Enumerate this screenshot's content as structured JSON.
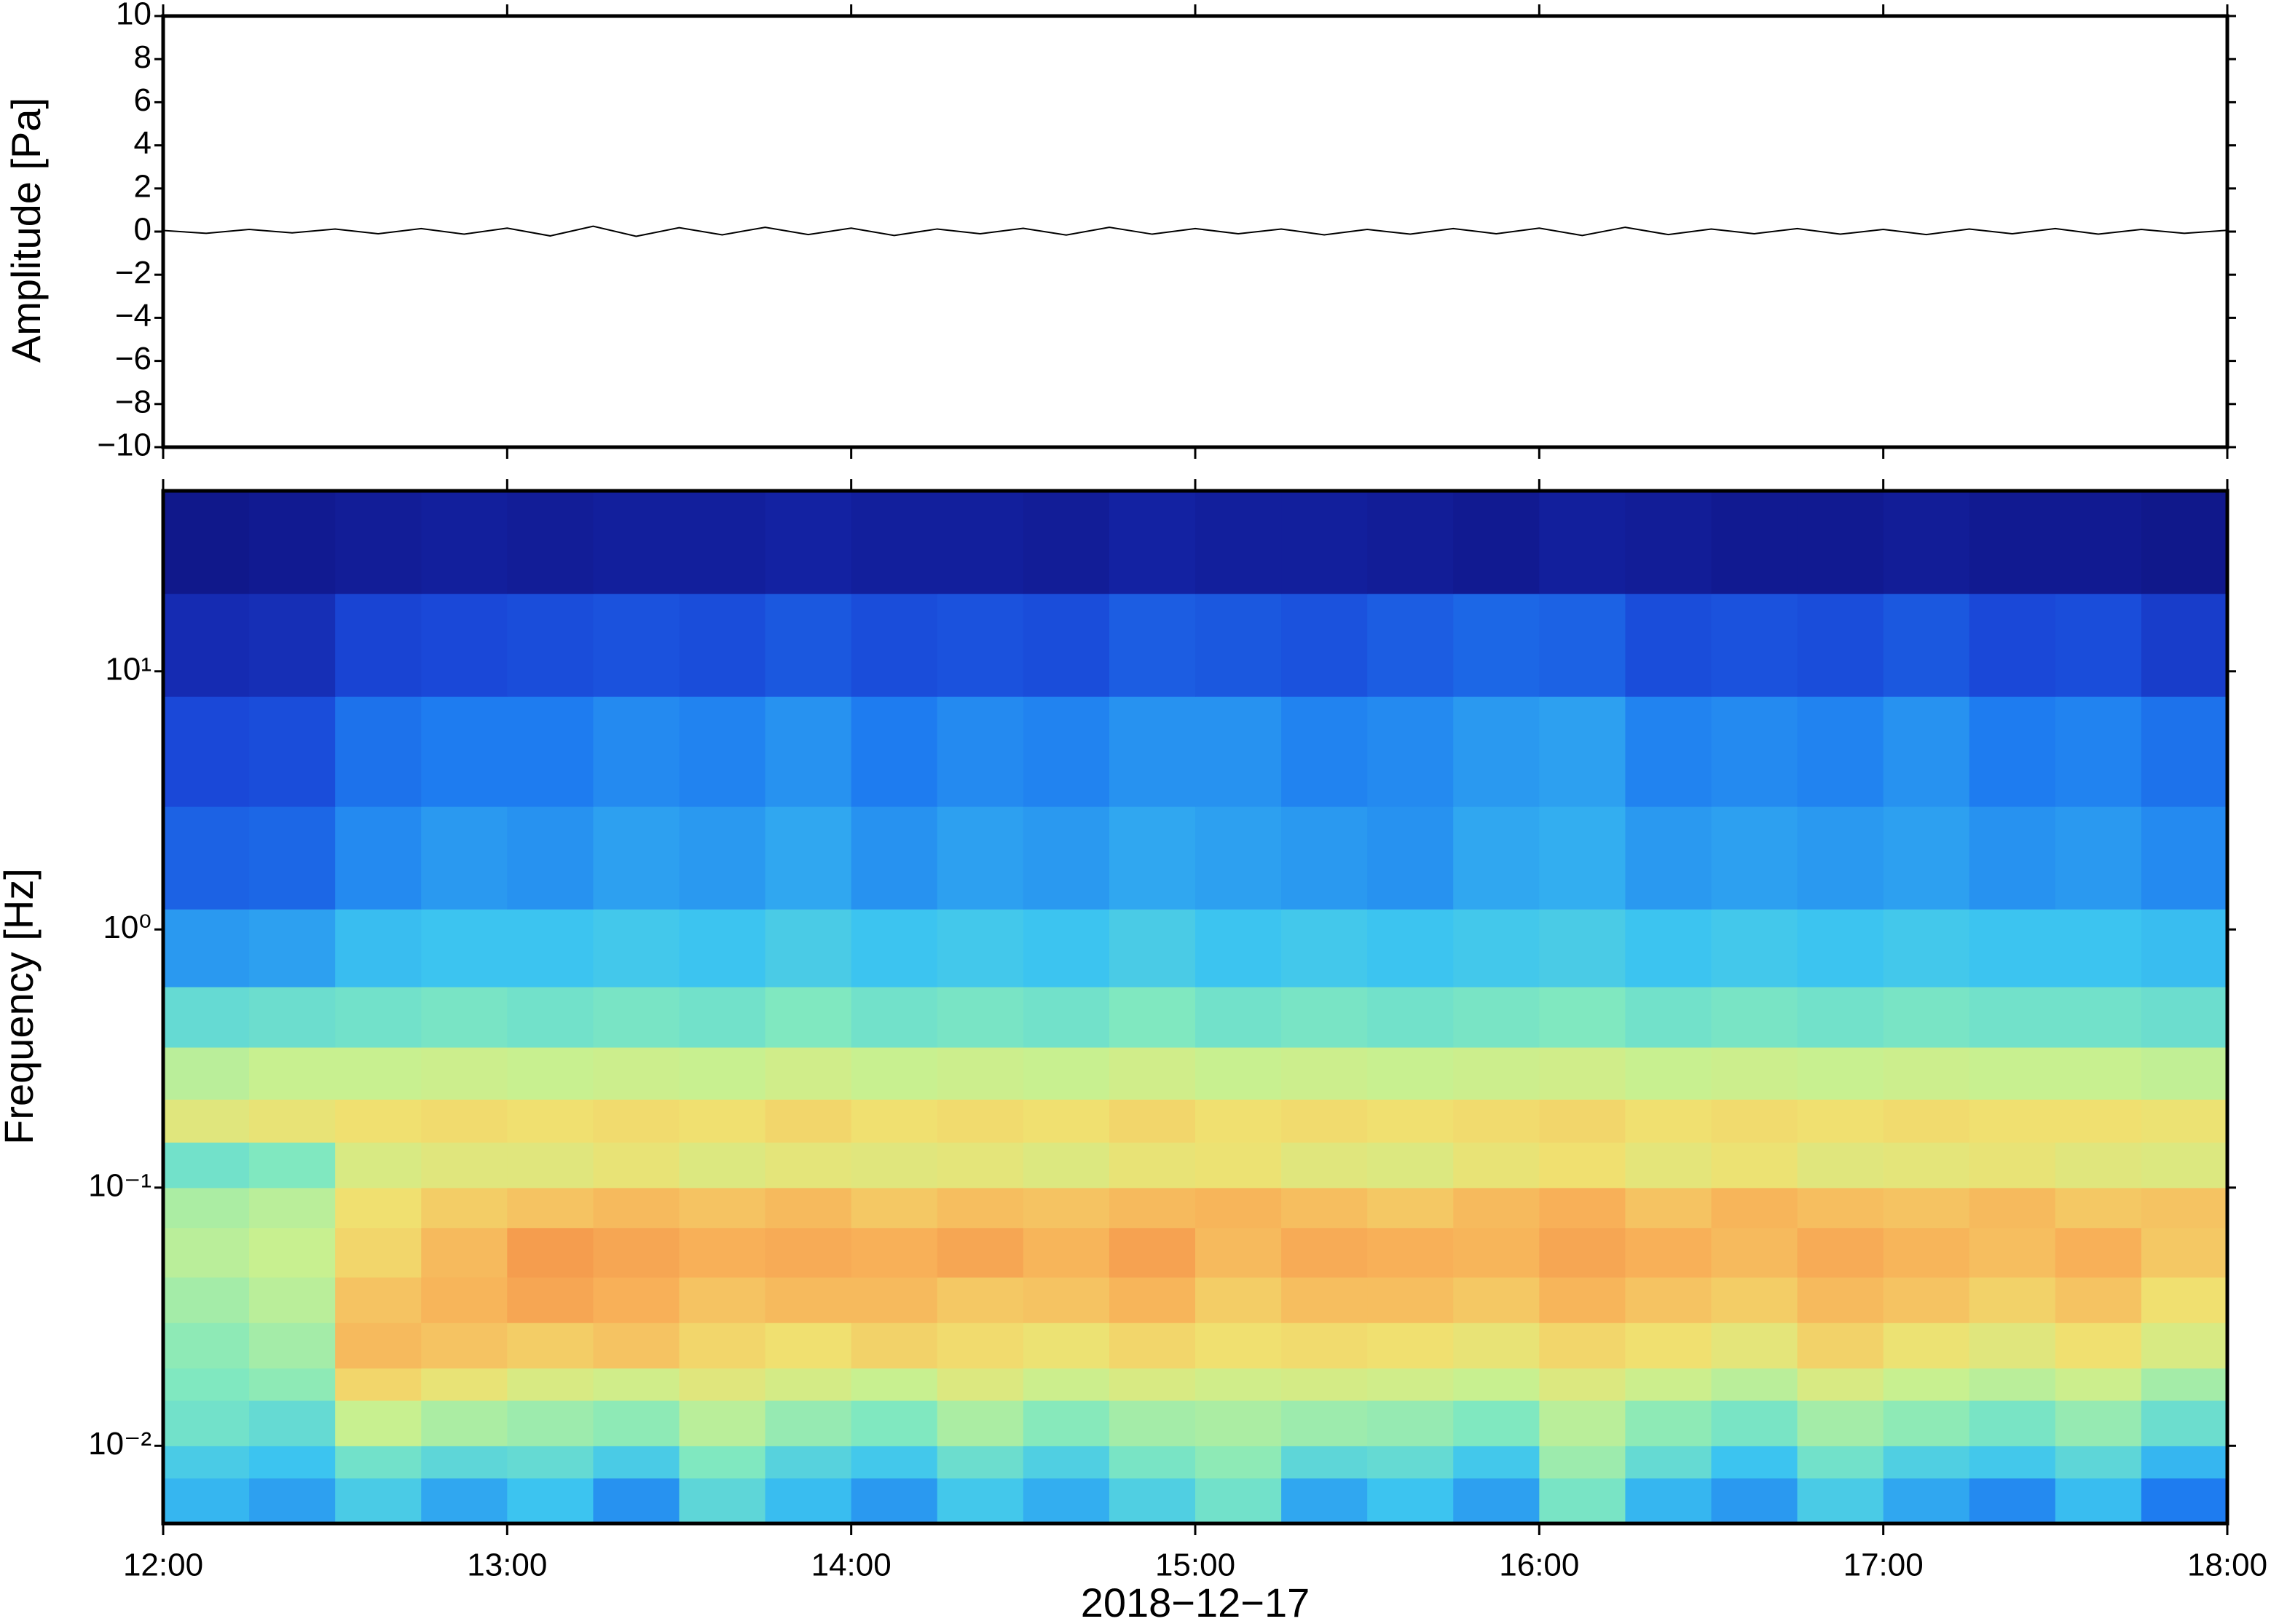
{
  "chart_data": [
    {
      "type": "line",
      "ylabel": "Amplitude [Pa]",
      "color": "#000000",
      "x": [
        12,
        12.125,
        12.25,
        12.375,
        12.5,
        12.625,
        12.75,
        12.875,
        13,
        13.125,
        13.25,
        13.375,
        13.5,
        13.625,
        13.75,
        13.875,
        14,
        14.125,
        14.25,
        14.375,
        14.5,
        14.625,
        14.75,
        14.875,
        15,
        15.125,
        15.25,
        15.375,
        15.5,
        15.625,
        15.75,
        15.875,
        16,
        16.125,
        16.25,
        16.375,
        16.5,
        16.625,
        16.75,
        16.875,
        17,
        17.125,
        17.25,
        17.375,
        17.5,
        17.625,
        17.75,
        17.875,
        18
      ],
      "values": [
        0.05,
        -0.08,
        0.1,
        -0.06,
        0.12,
        -0.1,
        0.14,
        -0.12,
        0.16,
        -0.2,
        0.25,
        -0.22,
        0.18,
        -0.15,
        0.2,
        -0.14,
        0.16,
        -0.18,
        0.12,
        -0.1,
        0.15,
        -0.16,
        0.2,
        -0.12,
        0.14,
        -0.1,
        0.12,
        -0.15,
        0.1,
        -0.12,
        0.14,
        -0.1,
        0.16,
        -0.18,
        0.2,
        -0.14,
        0.12,
        -0.1,
        0.14,
        -0.12,
        0.1,
        -0.14,
        0.12,
        -0.1,
        0.14,
        -0.12,
        0.1,
        -0.08,
        0.06
      ],
      "xlim": [
        12,
        18
      ],
      "ylim": [
        -10,
        10
      ],
      "yticks": [
        {
          "value": -10,
          "label": "−10"
        },
        {
          "value": -8,
          "label": "−8"
        },
        {
          "value": -6,
          "label": "−6"
        },
        {
          "value": -4,
          "label": "−4"
        },
        {
          "value": -2,
          "label": "−2"
        },
        0,
        2,
        4,
        6,
        8,
        10
      ]
    },
    {
      "type": "heatmap",
      "ylabel": "Frequency [Hz]",
      "xlabel": "2018−12−17",
      "log_y": true,
      "xlim": [
        12,
        18
      ],
      "ylim": [
        0.005,
        50
      ],
      "xticks": [
        {
          "value": 12,
          "label": "12:00"
        },
        {
          "value": 13,
          "label": "13:00"
        },
        {
          "value": 14,
          "label": "14:00"
        },
        {
          "value": 15,
          "label": "15:00"
        },
        {
          "value": 16,
          "label": "16:00"
        },
        {
          "value": 17,
          "label": "17:00"
        },
        {
          "value": 18,
          "label": "18:00"
        }
      ],
      "yticks": [
        {
          "value": 0.01,
          "label": "10⁻²"
        },
        {
          "value": 0.1,
          "label": "10⁻¹"
        },
        {
          "value": 1,
          "label": "10⁰"
        },
        {
          "value": 10,
          "label": "10¹"
        }
      ],
      "xbins": [
        12,
        12.25,
        12.5,
        12.75,
        13,
        13.25,
        13.5,
        13.75,
        14,
        14.25,
        14.5,
        14.75,
        15,
        15.25,
        15.5,
        15.75,
        16,
        16.25,
        16.5,
        16.75,
        17,
        17.25,
        17.5,
        17.75,
        18
      ],
      "ybins": [
        0.005,
        0.0075,
        0.01,
        0.015,
        0.02,
        0.03,
        0.045,
        0.07,
        0.1,
        0.15,
        0.22,
        0.35,
        0.6,
        1.2,
        3,
        8,
        20,
        50
      ],
      "zlim": [
        0,
        10
      ],
      "colormap": [
        "#0c0c6e",
        "#1424a8",
        "#1a48d8",
        "#1e7cf0",
        "#3cc4f0",
        "#80e8c0",
        "#c8f090",
        "#f0e070",
        "#f8b058",
        "#f08040",
        "#d83020"
      ],
      "values": [
        [
          3.8,
          3.5,
          4.2,
          3.6,
          4.0,
          3.3,
          4.5,
          3.9,
          3.4,
          4.1,
          3.7,
          4.3,
          4.8,
          3.6,
          4.0,
          3.5,
          4.9,
          3.8,
          3.4,
          4.2,
          3.6,
          3.2,
          3.9,
          3.0
        ],
        [
          4.2,
          4.0,
          4.8,
          4.5,
          4.6,
          4.2,
          5.0,
          4.4,
          4.1,
          4.7,
          4.3,
          4.9,
          5.2,
          4.5,
          4.6,
          4.1,
          5.4,
          4.6,
          4.0,
          4.8,
          4.3,
          4.1,
          4.5,
          3.8
        ],
        [
          4.8,
          4.6,
          6.0,
          5.6,
          5.4,
          5.2,
          5.8,
          5.3,
          5.0,
          5.6,
          5.1,
          5.5,
          5.6,
          5.4,
          5.3,
          5.0,
          5.8,
          5.2,
          4.9,
          5.5,
          5.2,
          4.9,
          5.3,
          4.7
        ],
        [
          5.0,
          5.2,
          7.2,
          6.8,
          6.4,
          6.2,
          6.6,
          6.3,
          6.0,
          6.5,
          6.1,
          6.4,
          6.2,
          6.3,
          6.2,
          6.0,
          6.5,
          6.1,
          5.8,
          6.4,
          6.0,
          5.8,
          6.1,
          5.5
        ],
        [
          5.2,
          5.5,
          7.8,
          7.6,
          7.4,
          7.6,
          7.2,
          7.0,
          7.3,
          7.1,
          6.9,
          7.2,
          7.0,
          7.1,
          7.0,
          6.8,
          7.2,
          7.0,
          6.7,
          7.3,
          6.9,
          6.6,
          7.0,
          6.4
        ],
        [
          5.5,
          5.8,
          7.6,
          7.9,
          8.2,
          8.0,
          7.6,
          7.8,
          7.8,
          7.5,
          7.6,
          7.9,
          7.4,
          7.7,
          7.7,
          7.5,
          7.9,
          7.6,
          7.4,
          7.8,
          7.6,
          7.3,
          7.6,
          7.0
        ],
        [
          5.8,
          6.0,
          7.2,
          7.8,
          8.4,
          8.2,
          8.0,
          8.1,
          8.0,
          8.2,
          7.9,
          8.3,
          7.8,
          8.1,
          8.0,
          7.9,
          8.2,
          8.0,
          7.8,
          8.1,
          7.9,
          7.7,
          8.0,
          7.5
        ],
        [
          5.6,
          5.8,
          7.0,
          7.4,
          7.6,
          7.8,
          7.6,
          7.8,
          7.5,
          7.7,
          7.6,
          7.8,
          7.9,
          7.7,
          7.5,
          7.8,
          8.0,
          7.6,
          7.9,
          7.7,
          7.6,
          7.8,
          7.5,
          7.6
        ],
        [
          4.8,
          5.0,
          6.4,
          6.6,
          6.6,
          6.8,
          6.5,
          6.7,
          6.6,
          6.7,
          6.5,
          6.8,
          6.9,
          6.6,
          6.5,
          6.8,
          7.0,
          6.7,
          6.9,
          6.6,
          6.7,
          6.8,
          6.6,
          6.5
        ],
        [
          6.6,
          6.8,
          7.0,
          7.1,
          7.0,
          7.1,
          7.0,
          7.2,
          7.0,
          7.1,
          7.0,
          7.2,
          7.0,
          7.1,
          7.0,
          7.1,
          7.2,
          7.0,
          7.1,
          7.0,
          7.1,
          7.0,
          7.0,
          6.9
        ],
        [
          5.8,
          6.0,
          6.0,
          6.1,
          6.0,
          6.1,
          6.0,
          6.2,
          6.0,
          6.1,
          6.0,
          6.2,
          6.0,
          6.1,
          6.0,
          6.1,
          6.2,
          6.0,
          6.1,
          6.0,
          6.1,
          6.0,
          6.0,
          5.9
        ],
        [
          4.6,
          4.7,
          4.8,
          4.9,
          4.8,
          4.9,
          4.8,
          5.0,
          4.8,
          4.9,
          4.8,
          5.0,
          4.8,
          4.9,
          4.8,
          4.9,
          5.0,
          4.8,
          4.9,
          4.8,
          4.9,
          4.8,
          4.8,
          4.7
        ],
        [
          3.4,
          3.5,
          3.9,
          4.0,
          4.0,
          4.1,
          4.0,
          4.2,
          4.0,
          4.1,
          4.0,
          4.2,
          4.0,
          4.1,
          4.0,
          4.1,
          4.2,
          4.0,
          4.1,
          4.0,
          4.1,
          4.0,
          4.0,
          3.9
        ],
        [
          2.5,
          2.6,
          3.2,
          3.4,
          3.3,
          3.5,
          3.4,
          3.6,
          3.3,
          3.5,
          3.4,
          3.6,
          3.5,
          3.4,
          3.3,
          3.6,
          3.7,
          3.4,
          3.5,
          3.4,
          3.5,
          3.3,
          3.4,
          3.2
        ],
        [
          2.0,
          2.1,
          2.8,
          3.0,
          3.0,
          3.2,
          3.1,
          3.3,
          3.0,
          3.2,
          3.1,
          3.3,
          3.3,
          3.1,
          3.2,
          3.4,
          3.5,
          3.1,
          3.2,
          3.1,
          3.3,
          3.0,
          3.1,
          2.8
        ],
        [
          1.2,
          1.3,
          1.9,
          2.0,
          2.1,
          2.2,
          2.1,
          2.3,
          2.1,
          2.2,
          2.1,
          2.4,
          2.3,
          2.2,
          2.4,
          2.6,
          2.5,
          2.1,
          2.2,
          2.1,
          2.3,
          2.0,
          2.1,
          1.7
        ],
        [
          0.5,
          0.6,
          0.7,
          0.8,
          0.7,
          0.8,
          0.8,
          0.9,
          0.8,
          0.8,
          0.7,
          0.9,
          0.8,
          0.8,
          0.7,
          0.6,
          0.8,
          0.7,
          0.6,
          0.6,
          0.7,
          0.6,
          0.6,
          0.5
        ]
      ]
    }
  ]
}
